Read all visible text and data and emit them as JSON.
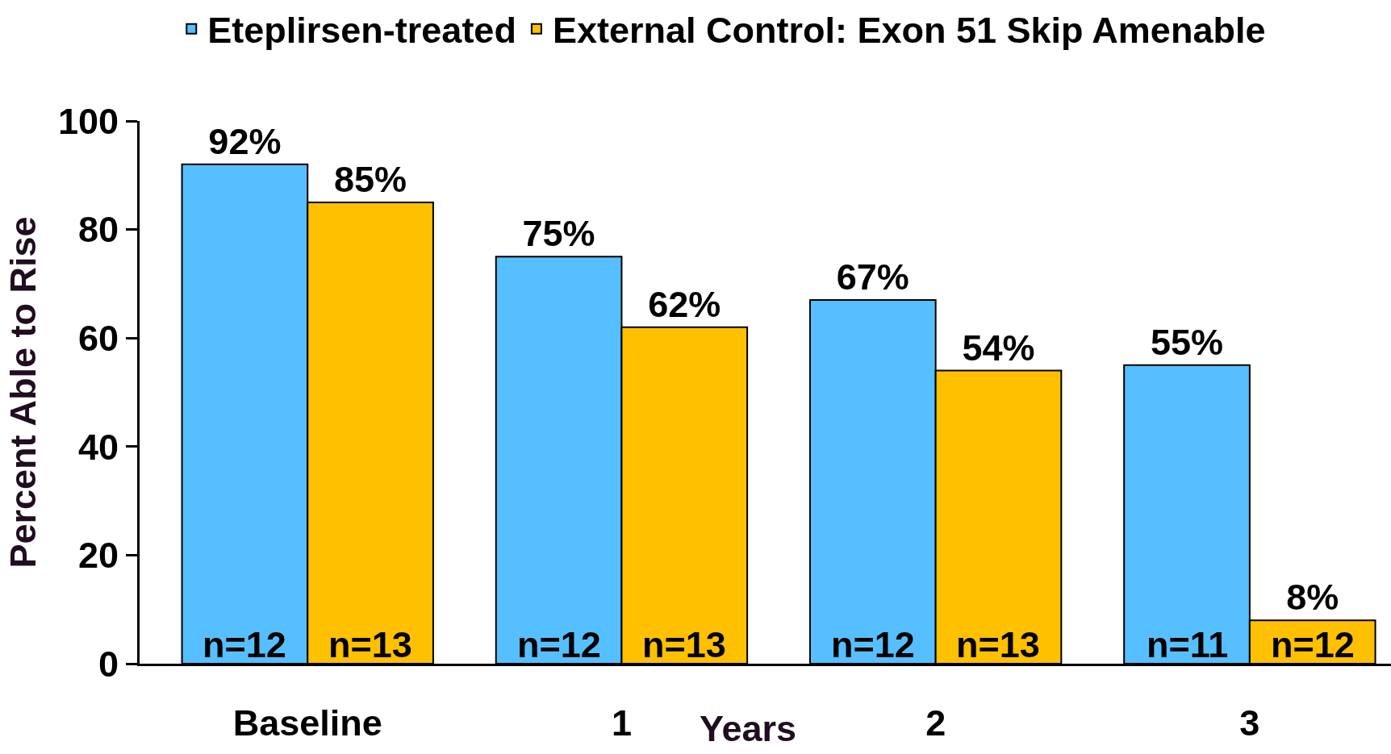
{
  "chart_data": {
    "type": "bar",
    "categories": [
      "Baseline",
      "1",
      "2",
      "3"
    ],
    "xlabel": "Years",
    "ylabel": "Percent Able to Rise",
    "ylim": [
      0,
      100
    ],
    "yticks": [
      0,
      20,
      40,
      60,
      80,
      100
    ],
    "grid": false,
    "legend": "top",
    "series": [
      {
        "name": "Eteplirsen-treated",
        "color": "#56bfff",
        "values": [
          92,
          75,
          67,
          55
        ],
        "value_labels": [
          "92%",
          "75%",
          "67%",
          "55%"
        ]
      },
      {
        "name": "External Control: Exon 51 Skip Amenable",
        "color": "#ffc000",
        "values": [
          85,
          62,
          54,
          8
        ],
        "value_labels": [
          "85%",
          "62%",
          "54%",
          "8%"
        ]
      }
    ],
    "annotations": [
      {
        "text": "n=12",
        "x": "Baseline",
        "y": 0
      },
      {
        "text": "n=13",
        "x": "Baseline",
        "y": 0
      },
      {
        "text": "n=12",
        "x": "1",
        "y": 0
      },
      {
        "text": "n=13",
        "x": "1",
        "y": 0
      },
      {
        "text": "n=12",
        "x": "2",
        "y": 0
      },
      {
        "text": "n=13",
        "x": "2",
        "y": 0
      },
      {
        "text": "n=11",
        "x": "3",
        "y": 0
      },
      {
        "text": "n=12",
        "x": "3",
        "y": 0
      }
    ]
  }
}
